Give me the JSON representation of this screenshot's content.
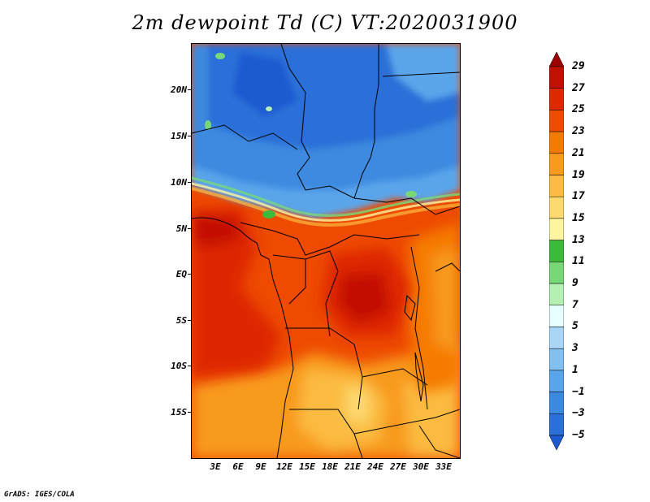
{
  "title": "2m dewpoint Td (C) VT:2020031900",
  "credit": "GrADS: IGES/COLA",
  "lat_labels": [
    "20N",
    "15N",
    "10N",
    "5N",
    "EQ",
    "5S",
    "10S",
    "15S"
  ],
  "lon_labels": [
    "3E",
    "6E",
    "9E",
    "12E",
    "15E",
    "18E",
    "21E",
    "24E",
    "27E",
    "30E",
    "33E"
  ],
  "colorbar": {
    "labels": [
      "29",
      "27",
      "25",
      "23",
      "21",
      "19",
      "17",
      "15",
      "13",
      "11",
      "9",
      "7",
      "5",
      "3",
      "1",
      "−1",
      "−3",
      "−5"
    ],
    "colors": [
      "#9c0000",
      "#c21000",
      "#dd2800",
      "#ee4a00",
      "#f57a00",
      "#f89a1a",
      "#fbbb40",
      "#fdda70",
      "#fdf5a0",
      "#3cba3c",
      "#78d878",
      "#b4f0b4",
      "#e6ffff",
      "#a9d6f7",
      "#82c0f0",
      "#5aa5ea",
      "#3c8ae0",
      "#2a70d8",
      "#1e5ad0"
    ]
  }
}
